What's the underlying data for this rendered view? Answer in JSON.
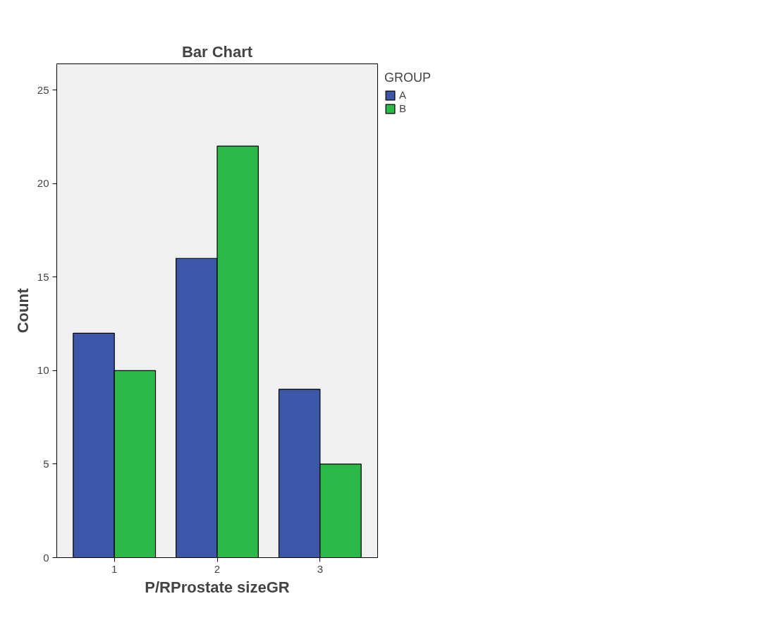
{
  "chart_data": {
    "type": "bar",
    "title": "Bar Chart",
    "xlabel": "P/RProstate sizeGR",
    "ylabel": "Count",
    "legend_title": "GROUP",
    "categories": [
      "1",
      "2",
      "3"
    ],
    "series": [
      {
        "name": "A",
        "color": "#3d57a8",
        "values": [
          12,
          16,
          9
        ]
      },
      {
        "name": "B",
        "color": "#2db84a",
        "values": [
          10,
          22,
          5
        ]
      }
    ],
    "ylim": [
      0,
      26.4
    ],
    "yticks": [
      0,
      5,
      10,
      15,
      20,
      25
    ],
    "grid": false,
    "legend": "top right"
  }
}
